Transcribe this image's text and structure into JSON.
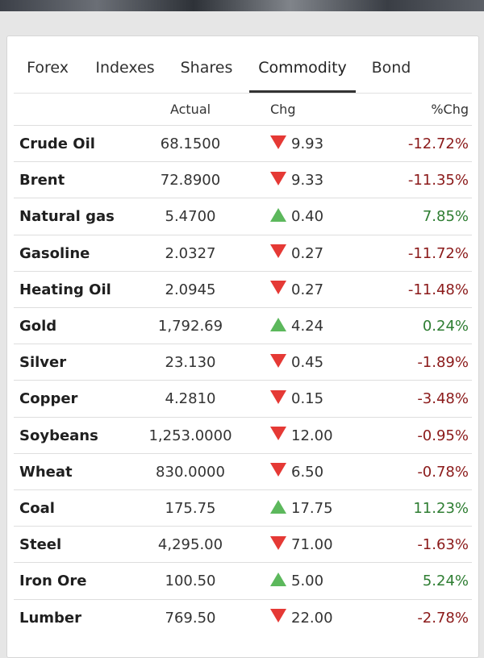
{
  "tabs": [
    {
      "label": "Forex",
      "active": false
    },
    {
      "label": "Indexes",
      "active": false
    },
    {
      "label": "Shares",
      "active": false
    },
    {
      "label": "Commodity",
      "active": true
    },
    {
      "label": "Bond",
      "active": false
    }
  ],
  "columns": {
    "name": "",
    "actual": "Actual",
    "chg": "Chg",
    "pct": "%Chg"
  },
  "colors": {
    "down_arrow": "#e53935",
    "up_arrow": "#5cb85c",
    "down_text": "#8b1a1a",
    "up_text": "#2e7d32"
  },
  "rows": [
    {
      "name": "Crude Oil",
      "actual": "68.1500",
      "direction": "down",
      "chg": "9.93",
      "pct": "-12.72%"
    },
    {
      "name": "Brent",
      "actual": "72.8900",
      "direction": "down",
      "chg": "9.33",
      "pct": "-11.35%"
    },
    {
      "name": "Natural gas",
      "actual": "5.4700",
      "direction": "up",
      "chg": "0.40",
      "pct": "7.85%"
    },
    {
      "name": "Gasoline",
      "actual": "2.0327",
      "direction": "down",
      "chg": "0.27",
      "pct": "-11.72%"
    },
    {
      "name": "Heating Oil",
      "actual": "2.0945",
      "direction": "down",
      "chg": "0.27",
      "pct": "-11.48%"
    },
    {
      "name": "Gold",
      "actual": "1,792.69",
      "direction": "up",
      "chg": "4.24",
      "pct": "0.24%"
    },
    {
      "name": "Silver",
      "actual": "23.130",
      "direction": "down",
      "chg": "0.45",
      "pct": "-1.89%"
    },
    {
      "name": "Copper",
      "actual": "4.2810",
      "direction": "down",
      "chg": "0.15",
      "pct": "-3.48%"
    },
    {
      "name": "Soybeans",
      "actual": "1,253.0000",
      "direction": "down",
      "chg": "12.00",
      "pct": "-0.95%"
    },
    {
      "name": "Wheat",
      "actual": "830.0000",
      "direction": "down",
      "chg": "6.50",
      "pct": "-0.78%"
    },
    {
      "name": "Coal",
      "actual": "175.75",
      "direction": "up",
      "chg": "17.75",
      "pct": "11.23%"
    },
    {
      "name": "Steel",
      "actual": "4,295.00",
      "direction": "down",
      "chg": "71.00",
      "pct": "-1.63%"
    },
    {
      "name": "Iron Ore",
      "actual": "100.50",
      "direction": "up",
      "chg": "5.00",
      "pct": "5.24%"
    },
    {
      "name": "Lumber",
      "actual": "769.50",
      "direction": "down",
      "chg": "22.00",
      "pct": "-2.78%"
    }
  ]
}
